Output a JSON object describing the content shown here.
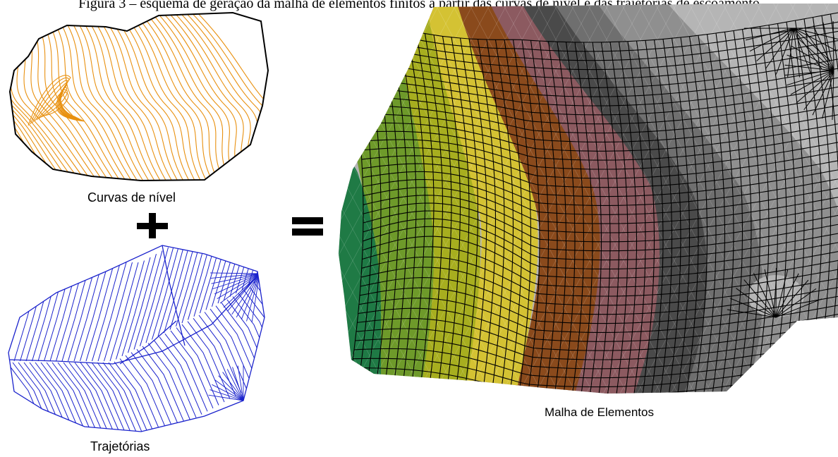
{
  "caption_partial": "Figura 3 – esquema de geração da malha de elementos finitos a partir das curvas de nível e das trajetórias de escoamento",
  "panels": {
    "contours": {
      "label": "Curvas de nível",
      "line_color": "#e8900f",
      "outline_color": "#000000"
    },
    "trajectories": {
      "label": "Trajetórias",
      "line_color": "#1a22cc"
    },
    "mesh": {
      "label": "Malha de Elementos"
    }
  },
  "operators": {
    "plus": "+",
    "equals": "="
  },
  "mesh_zone_colors": [
    "#1f7a45",
    "#6e9a2a",
    "#a7ae1f",
    "#d4c233",
    "#8a4a1c",
    "#8c5a60",
    "#4a4a4a",
    "#6f6f6f",
    "#8f8f8f",
    "#b5b5b5"
  ],
  "mesh_line_color": "#000000"
}
